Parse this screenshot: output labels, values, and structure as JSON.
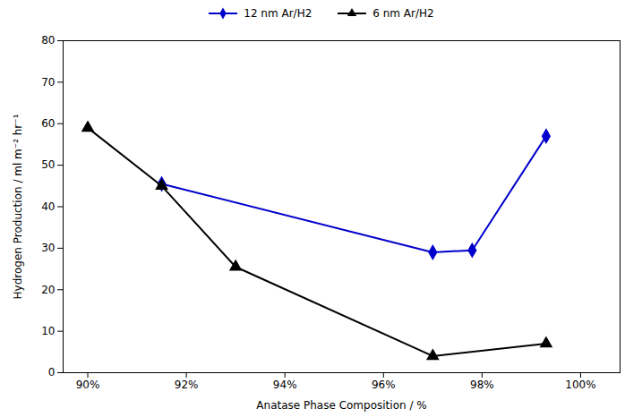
{
  "chart_data": {
    "type": "line",
    "xlabel": "Anatase Phase Composition / %",
    "ylabel": "Hydrogen Production / ml m⁻² hr⁻¹",
    "series": [
      {
        "name": "12 nm Ar/H2",
        "color": "#0000CC",
        "marker": "diamond",
        "x": [
          91.5,
          97.0,
          97.8,
          99.3
        ],
        "values": [
          45.5,
          29.0,
          29.5,
          57.0
        ]
      },
      {
        "name": "6 nm Ar/H2",
        "color": "#000000",
        "marker": "triangle",
        "x": [
          90.0,
          91.5,
          93.0,
          97.0,
          99.3
        ],
        "values": [
          59.0,
          45.0,
          25.5,
          4.0,
          7.0
        ]
      }
    ],
    "xlim": [
      89.5,
      100.8
    ],
    "ylim": [
      0,
      80
    ],
    "xticks": [
      {
        "value": 90,
        "label": "90%"
      },
      {
        "value": 92,
        "label": "92%"
      },
      {
        "value": 94,
        "label": "94%"
      },
      {
        "value": 96,
        "label": "96%"
      },
      {
        "value": 98,
        "label": "98%"
      },
      {
        "value": 100,
        "label": "100%"
      }
    ],
    "yticks": [
      0,
      10,
      20,
      30,
      40,
      50,
      60,
      70,
      80
    ],
    "grid": false,
    "legend": "top"
  }
}
